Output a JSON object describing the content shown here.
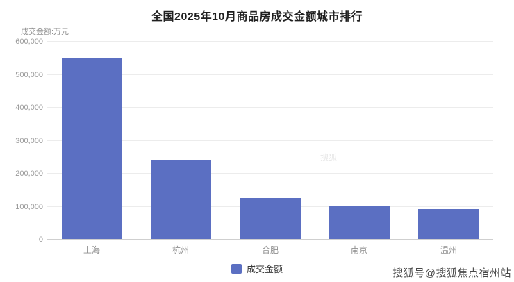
{
  "title": "全国2025年10月商品房成交金额城市排行",
  "axis_unit": "成交金额:万元",
  "legend": {
    "label": "成交金额",
    "color": "#5b6fc2"
  },
  "watermark": "搜狐号@搜狐焦点宿州站",
  "watermark_faint": "搜狐",
  "chart_data": {
    "type": "bar",
    "title": "全国2025年10月商品房成交金额城市排行",
    "categories": [
      "上海",
      "杭州",
      "合肥",
      "南京",
      "温州"
    ],
    "series": [
      {
        "name": "成交金额",
        "values": [
          550000,
          240000,
          125000,
          100000,
          90000
        ]
      }
    ],
    "xlabel": "",
    "ylabel": "成交金额:万元",
    "ylim": [
      0,
      600000
    ],
    "yticks": [
      0,
      100000,
      200000,
      300000,
      400000,
      500000,
      600000
    ],
    "grid": true,
    "legend_position": "bottom",
    "bar_color": "#5b6fc2"
  }
}
